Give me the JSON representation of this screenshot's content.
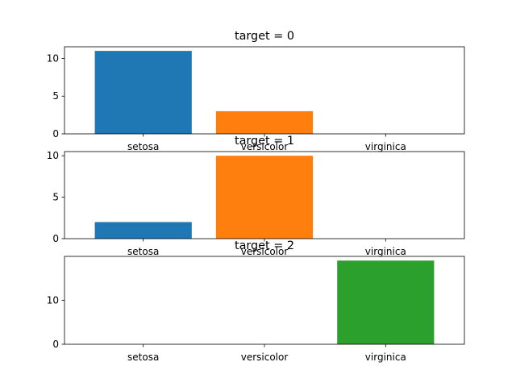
{
  "chart_data": [
    {
      "type": "bar",
      "title": "target = 0",
      "categories": [
        "setosa",
        "versicolor",
        "virginica"
      ],
      "values": [
        11,
        3,
        0
      ],
      "colors": [
        "#1f77b4",
        "#ff7f0e",
        "#2ca02c"
      ],
      "ylim": [
        0,
        11.55
      ],
      "yticks": [
        0,
        5,
        10
      ],
      "grid": false
    },
    {
      "type": "bar",
      "title": "target = 1",
      "categories": [
        "setosa",
        "versicolor",
        "virginica"
      ],
      "values": [
        2,
        10,
        0
      ],
      "colors": [
        "#1f77b4",
        "#ff7f0e",
        "#2ca02c"
      ],
      "ylim": [
        0,
        10.5
      ],
      "yticks": [
        0,
        5,
        10
      ],
      "grid": false
    },
    {
      "type": "bar",
      "title": "target = 2",
      "categories": [
        "setosa",
        "versicolor",
        "virginica"
      ],
      "values": [
        0,
        0,
        19
      ],
      "colors": [
        "#1f77b4",
        "#ff7f0e",
        "#2ca02c"
      ],
      "ylim": [
        0,
        19.95
      ],
      "yticks": [
        0,
        10
      ],
      "grid": false
    }
  ]
}
